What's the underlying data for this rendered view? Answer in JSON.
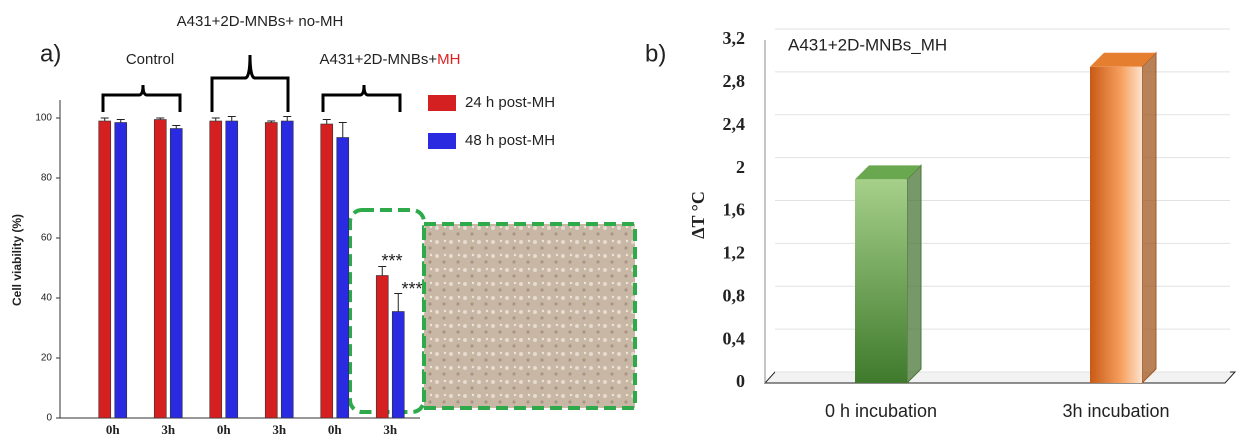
{
  "chart_data": [
    {
      "type": "bar",
      "panel_label": "a)",
      "ylabel": "Cell viability (%)",
      "categories": [
        "0h",
        "3h",
        "0h",
        "3h",
        "0h",
        "3h"
      ],
      "groups": [
        {
          "label": "Control"
        },
        {
          "label": "A431+2D-MNBs+ no-MH"
        },
        {
          "label": "A431+2D-MNBs+",
          "highlight": "MH"
        }
      ],
      "series": [
        {
          "name": "24 h post-MH",
          "color": "#d42020",
          "values": [
            99,
            99.5,
            99,
            98.5,
            98,
            47.5
          ],
          "errors": [
            1,
            0.5,
            1,
            0.5,
            1.5,
            3
          ]
        },
        {
          "name": "48 h post-MH",
          "color": "#2a2ae0",
          "values": [
            98.5,
            96.5,
            99,
            99,
            93.5,
            35.5
          ],
          "errors": [
            1,
            1,
            1.5,
            1.5,
            5,
            6
          ]
        }
      ],
      "annotations": [
        "***",
        "***"
      ],
      "ylim": [
        0,
        106
      ],
      "yticks": [
        0,
        20,
        40,
        60,
        80,
        100
      ]
    },
    {
      "type": "bar3d",
      "panel_label": "b)",
      "title": "A431+2D-MNBs_MH",
      "ylabel": "ΔT °C",
      "categories": [
        "0 h incubation",
        "3h incubation"
      ],
      "values": [
        1.9,
        2.95
      ],
      "colors": [
        "#6aa84f",
        "#e67e30"
      ],
      "ylim": [
        0,
        3.2
      ],
      "yticks": [
        0,
        {
          "value": 0.4,
          "label": "0,4"
        },
        {
          "value": 0.8,
          "label": "0,8"
        },
        {
          "value": 1.2,
          "label": "1,2"
        },
        {
          "value": 1.6,
          "label": "1,6"
        },
        2,
        {
          "value": 2.4,
          "label": "2,4"
        },
        {
          "value": 2.8,
          "label": "2,8"
        },
        {
          "value": 3.2,
          "label": "3,2"
        }
      ],
      "grid": true
    }
  ]
}
